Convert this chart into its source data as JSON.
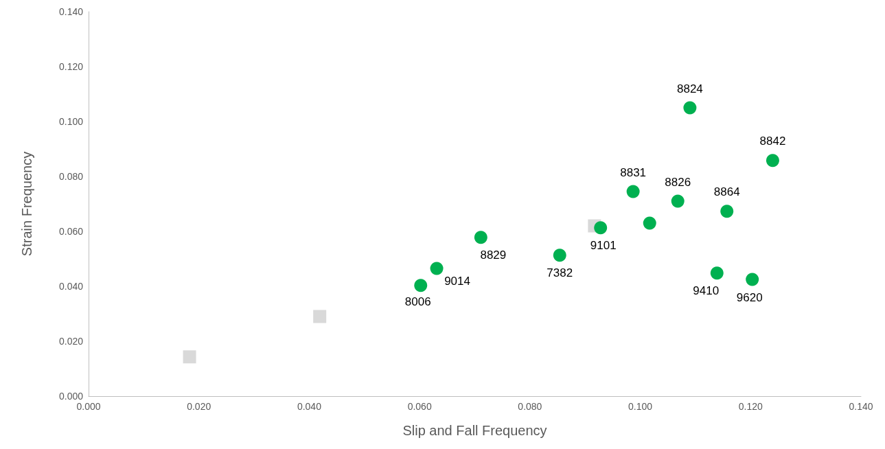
{
  "chart_data": {
    "type": "scatter",
    "xlabel": "Slip and Fall Frequency",
    "ylabel": "Strain Frequency",
    "grid": false,
    "xlim": [
      0,
      0.14
    ],
    "ylim": [
      0,
      0.14
    ],
    "xticks": [
      {
        "value": 0,
        "label": "0.000"
      },
      {
        "value": 0.02,
        "label": "0.020"
      },
      {
        "value": 0.04,
        "label": "0.040"
      },
      {
        "value": 0.06,
        "label": "0.060"
      },
      {
        "value": 0.08,
        "label": "0.080"
      },
      {
        "value": 0.1,
        "label": "0.100"
      },
      {
        "value": 0.12,
        "label": "0.120"
      },
      {
        "value": 0.14,
        "label": "0.140"
      }
    ],
    "yticks": [
      {
        "value": 0,
        "label": "0.000"
      },
      {
        "value": 0.02,
        "label": "0.020"
      },
      {
        "value": 0.04,
        "label": "0.040"
      },
      {
        "value": 0.06,
        "label": "0.060"
      },
      {
        "value": 0.08,
        "label": "0.080"
      },
      {
        "value": 0.1,
        "label": "0.100"
      },
      {
        "value": 0.12,
        "label": "0.120"
      },
      {
        "value": 0.14,
        "label": "0.140"
      }
    ],
    "series": [
      {
        "color": "#d9d9d9",
        "marker": "square",
        "x": [
          0.0183,
          0.0419,
          0.0917
        ],
        "values": [
          0.0143,
          0.029,
          0.062
        ]
      },
      {
        "color": "#00b050",
        "marker": "circle",
        "x": [
          0.109,
          0.124,
          0.0987,
          0.1068,
          0.1157,
          0.1017,
          0.0928,
          0.0711,
          0.0854,
          0.0631,
          0.0602,
          0.1139,
          0.1203
        ],
        "values": [
          0.105,
          0.0858,
          0.0745,
          0.071,
          0.0673,
          0.063,
          0.0613,
          0.0578,
          0.0513,
          0.0465,
          0.0403,
          0.0448,
          0.0425
        ]
      }
    ],
    "annotations": [
      {
        "text": "8824",
        "x": 0.109,
        "y": 0.105
      },
      {
        "text": "8842",
        "x": 0.124,
        "y": 0.0858
      },
      {
        "text": "8831",
        "x": 0.0987,
        "y": 0.0745
      },
      {
        "text": "8826",
        "x": 0.1068,
        "y": 0.071
      },
      {
        "text": "8864",
        "x": 0.1157,
        "y": 0.0673
      },
      {
        "text": "9101",
        "x": 0.0928,
        "y": 0.0613
      },
      {
        "text": "8829",
        "x": 0.0711,
        "y": 0.0578
      },
      {
        "text": "7382",
        "x": 0.0854,
        "y": 0.0513
      },
      {
        "text": "9014",
        "x": 0.0631,
        "y": 0.0465
      },
      {
        "text": "8006",
        "x": 0.0602,
        "y": 0.0403
      },
      {
        "text": "9410",
        "x": 0.1139,
        "y": 0.0448
      },
      {
        "text": "9620",
        "x": 0.1203,
        "y": 0.0425
      }
    ]
  }
}
